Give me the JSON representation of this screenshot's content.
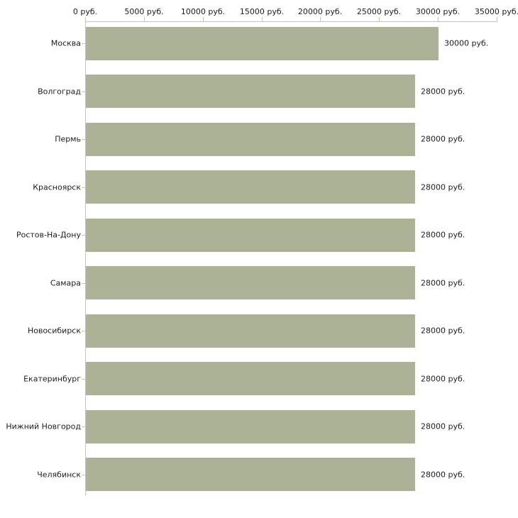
{
  "chart_data": {
    "type": "bar",
    "orientation": "horizontal",
    "title": "",
    "xlabel": "",
    "ylabel": "",
    "categories": [
      "Москва",
      "Волгоград",
      "Пермь",
      "Красноярск",
      "Ростов-На-Дону",
      "Самара",
      "Новосибирск",
      "Екатеринбург",
      "Нижний Новгород",
      "Челябинск"
    ],
    "values": [
      30000,
      28000,
      28000,
      28000,
      28000,
      28000,
      28000,
      28000,
      28000,
      28000
    ],
    "value_labels": [
      "30000 руб.",
      "28000 руб.",
      "28000 руб.",
      "28000 руб.",
      "28000 руб.",
      "28000 руб.",
      "28000 руб.",
      "28000 руб.",
      "28000 руб.",
      "28000 руб."
    ],
    "x_ticks": [
      0,
      5000,
      10000,
      15000,
      20000,
      25000,
      30000,
      35000
    ],
    "x_tick_labels": [
      "0 руб.",
      "5000 руб.",
      "10000 руб.",
      "15000 руб.",
      "20000 руб.",
      "25000 руб.",
      "30000 руб.",
      "35000 руб."
    ],
    "xlim": [
      0,
      35000
    ],
    "grid": false,
    "legend": false,
    "colors": {
      "bar": "#abb295",
      "axis": "#c3c3c3",
      "tick": "#c8c8a0",
      "text": "#1c1c1c",
      "background": "#ffffff"
    }
  }
}
